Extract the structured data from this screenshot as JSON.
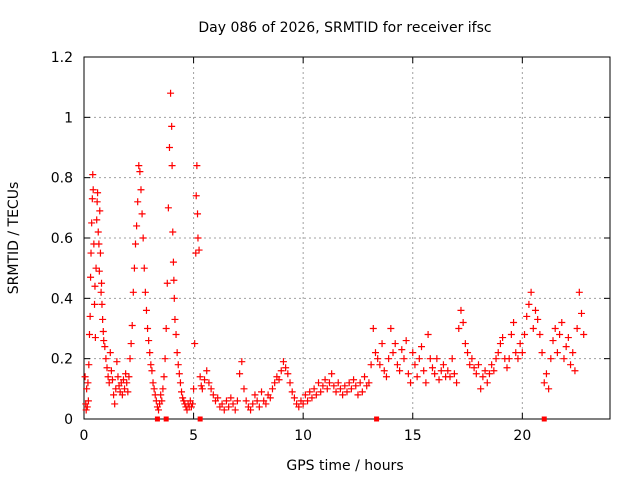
{
  "chart_data": {
    "type": "scatter",
    "title": "Day 086 of 2026, SRMTID for receiver ifsc",
    "xlabel": "GPS time / hours",
    "ylabel": "SRMTID / TECUs",
    "xlim": [
      0,
      24
    ],
    "ylim": [
      0,
      1.2
    ],
    "xticks": [
      0,
      5,
      10,
      15,
      20
    ],
    "xtick_labels": [
      "0",
      "5",
      "10",
      "15",
      "20"
    ],
    "yticks": [
      0,
      0.2,
      0.4,
      0.6,
      0.8,
      1.0,
      1.2
    ],
    "ytick_labels": [
      "0",
      "0.2",
      "0.4",
      "0.6",
      "0.8",
      "1",
      "1.2"
    ],
    "grid": true,
    "marker": "+",
    "series": [
      {
        "name": "SRMTID",
        "color": "#ff0000",
        "points": [
          [
            0.05,
            0.14
          ],
          [
            0.08,
            0.05
          ],
          [
            0.1,
            0.03
          ],
          [
            0.12,
            0.1
          ],
          [
            0.15,
            0.04
          ],
          [
            0.18,
            0.12
          ],
          [
            0.2,
            0.06
          ],
          [
            0.22,
            0.18
          ],
          [
            0.25,
            0.28
          ],
          [
            0.28,
            0.34
          ],
          [
            0.3,
            0.47
          ],
          [
            0.32,
            0.55
          ],
          [
            0.35,
            0.65
          ],
          [
            0.38,
            0.73
          ],
          [
            0.4,
            0.81
          ],
          [
            0.42,
            0.76
          ],
          [
            0.45,
            0.58
          ],
          [
            0.48,
            0.38
          ],
          [
            0.5,
            0.44
          ],
          [
            0.52,
            0.27
          ],
          [
            0.55,
            0.5
          ],
          [
            0.58,
            0.66
          ],
          [
            0.6,
            0.72
          ],
          [
            0.62,
            0.75
          ],
          [
            0.65,
            0.62
          ],
          [
            0.68,
            0.58
          ],
          [
            0.7,
            0.49
          ],
          [
            0.72,
            0.69
          ],
          [
            0.75,
            0.55
          ],
          [
            0.78,
            0.42
          ],
          [
            0.8,
            0.45
          ],
          [
            0.82,
            0.38
          ],
          [
            0.85,
            0.33
          ],
          [
            0.88,
            0.29
          ],
          [
            0.9,
            0.26
          ],
          [
            0.95,
            0.24
          ],
          [
            1.0,
            0.2
          ],
          [
            1.05,
            0.17
          ],
          [
            1.1,
            0.14
          ],
          [
            1.15,
            0.12
          ],
          [
            1.2,
            0.22
          ],
          [
            1.25,
            0.16
          ],
          [
            1.3,
            0.13
          ],
          [
            1.35,
            0.08
          ],
          [
            1.4,
            0.05
          ],
          [
            1.45,
            0.1
          ],
          [
            1.5,
            0.19
          ],
          [
            1.55,
            0.14
          ],
          [
            1.6,
            0.11
          ],
          [
            1.65,
            0.09
          ],
          [
            1.7,
            0.12
          ],
          [
            1.75,
            0.08
          ],
          [
            1.8,
            0.13
          ],
          [
            1.85,
            0.1
          ],
          [
            1.9,
            0.15
          ],
          [
            1.95,
            0.12
          ],
          [
            2.0,
            0.09
          ],
          [
            2.05,
            0.14
          ],
          [
            2.1,
            0.2
          ],
          [
            2.15,
            0.25
          ],
          [
            2.2,
            0.31
          ],
          [
            2.25,
            0.42
          ],
          [
            2.3,
            0.5
          ],
          [
            2.35,
            0.58
          ],
          [
            2.4,
            0.64
          ],
          [
            2.45,
            0.72
          ],
          [
            2.5,
            0.84
          ],
          [
            2.55,
            0.82
          ],
          [
            2.6,
            0.76
          ],
          [
            2.65,
            0.68
          ],
          [
            2.7,
            0.6
          ],
          [
            2.75,
            0.5
          ],
          [
            2.8,
            0.42
          ],
          [
            2.85,
            0.36
          ],
          [
            2.9,
            0.3
          ],
          [
            2.95,
            0.26
          ],
          [
            3.0,
            0.22
          ],
          [
            3.05,
            0.18
          ],
          [
            3.1,
            0.16
          ],
          [
            3.15,
            0.12
          ],
          [
            3.2,
            0.1
          ],
          [
            3.25,
            0.08
          ],
          [
            3.3,
            0.06
          ],
          [
            3.35,
            0.04
          ],
          [
            3.4,
            0.03
          ],
          [
            3.45,
            0.05
          ],
          [
            3.5,
            0.08
          ],
          [
            3.55,
            0.06
          ],
          [
            3.6,
            0.1
          ],
          [
            3.65,
            0.14
          ],
          [
            3.7,
            0.2
          ],
          [
            3.75,
            0.3
          ],
          [
            3.8,
            0.45
          ],
          [
            3.85,
            0.7
          ],
          [
            3.9,
            0.9
          ],
          [
            3.95,
            1.08
          ],
          [
            4.0,
            0.97
          ],
          [
            4.02,
            0.84
          ],
          [
            4.05,
            0.62
          ],
          [
            4.08,
            0.52
          ],
          [
            4.1,
            0.46
          ],
          [
            4.12,
            0.4
          ],
          [
            4.15,
            0.33
          ],
          [
            4.2,
            0.28
          ],
          [
            4.25,
            0.22
          ],
          [
            4.3,
            0.18
          ],
          [
            4.35,
            0.15
          ],
          [
            4.4,
            0.12
          ],
          [
            4.45,
            0.09
          ],
          [
            4.5,
            0.07
          ],
          [
            4.55,
            0.06
          ],
          [
            4.6,
            0.05
          ],
          [
            4.65,
            0.04
          ],
          [
            4.7,
            0.03
          ],
          [
            4.75,
            0.05
          ],
          [
            4.8,
            0.04
          ],
          [
            4.85,
            0.06
          ],
          [
            4.9,
            0.04
          ],
          [
            4.95,
            0.05
          ],
          [
            5.0,
            0.1
          ],
          [
            5.05,
            0.25
          ],
          [
            5.1,
            0.55
          ],
          [
            5.12,
            0.74
          ],
          [
            5.15,
            0.84
          ],
          [
            5.18,
            0.68
          ],
          [
            5.2,
            0.6
          ],
          [
            5.25,
            0.56
          ],
          [
            5.3,
            0.14
          ],
          [
            5.35,
            0.11
          ],
          [
            5.4,
            0.1
          ],
          [
            5.5,
            0.13
          ],
          [
            5.6,
            0.16
          ],
          [
            5.7,
            0.12
          ],
          [
            5.8,
            0.1
          ],
          [
            5.9,
            0.08
          ],
          [
            6.0,
            0.06
          ],
          [
            6.1,
            0.07
          ],
          [
            6.2,
            0.04
          ],
          [
            6.3,
            0.05
          ],
          [
            6.4,
            0.03
          ],
          [
            6.5,
            0.06
          ],
          [
            6.6,
            0.04
          ],
          [
            6.7,
            0.07
          ],
          [
            6.8,
            0.05
          ],
          [
            6.9,
            0.03
          ],
          [
            7.0,
            0.06
          ],
          [
            7.1,
            0.15
          ],
          [
            7.2,
            0.19
          ],
          [
            7.3,
            0.1
          ],
          [
            7.4,
            0.06
          ],
          [
            7.5,
            0.04
          ],
          [
            7.6,
            0.03
          ],
          [
            7.7,
            0.05
          ],
          [
            7.8,
            0.08
          ],
          [
            7.9,
            0.06
          ],
          [
            8.0,
            0.04
          ],
          [
            8.1,
            0.09
          ],
          [
            8.2,
            0.06
          ],
          [
            8.3,
            0.05
          ],
          [
            8.4,
            0.08
          ],
          [
            8.5,
            0.07
          ],
          [
            8.6,
            0.1
          ],
          [
            8.7,
            0.12
          ],
          [
            8.8,
            0.14
          ],
          [
            8.9,
            0.13
          ],
          [
            9.0,
            0.16
          ],
          [
            9.1,
            0.19
          ],
          [
            9.2,
            0.17
          ],
          [
            9.3,
            0.15
          ],
          [
            9.4,
            0.12
          ],
          [
            9.5,
            0.09
          ],
          [
            9.6,
            0.07
          ],
          [
            9.7,
            0.05
          ],
          [
            9.8,
            0.04
          ],
          [
            9.9,
            0.06
          ],
          [
            10.0,
            0.05
          ],
          [
            10.1,
            0.08
          ],
          [
            10.2,
            0.06
          ],
          [
            10.3,
            0.09
          ],
          [
            10.4,
            0.07
          ],
          [
            10.5,
            0.1
          ],
          [
            10.6,
            0.08
          ],
          [
            10.7,
            0.12
          ],
          [
            10.8,
            0.09
          ],
          [
            10.9,
            0.11
          ],
          [
            11.0,
            0.13
          ],
          [
            11.1,
            0.1
          ],
          [
            11.2,
            0.12
          ],
          [
            11.3,
            0.15
          ],
          [
            11.4,
            0.11
          ],
          [
            11.5,
            0.09
          ],
          [
            11.6,
            0.12
          ],
          [
            11.7,
            0.1
          ],
          [
            11.8,
            0.08
          ],
          [
            11.9,
            0.11
          ],
          [
            12.0,
            0.09
          ],
          [
            12.1,
            0.12
          ],
          [
            12.2,
            0.1
          ],
          [
            12.3,
            0.13
          ],
          [
            12.4,
            0.11
          ],
          [
            12.5,
            0.08
          ],
          [
            12.6,
            0.12
          ],
          [
            12.7,
            0.09
          ],
          [
            12.8,
            0.14
          ],
          [
            12.9,
            0.11
          ],
          [
            13.0,
            0.12
          ],
          [
            13.1,
            0.18
          ],
          [
            13.2,
            0.3
          ],
          [
            13.3,
            0.22
          ],
          [
            13.4,
            0.2
          ],
          [
            13.5,
            0.18
          ],
          [
            13.6,
            0.25
          ],
          [
            13.7,
            0.16
          ],
          [
            13.8,
            0.14
          ],
          [
            13.9,
            0.2
          ],
          [
            14.0,
            0.3
          ],
          [
            14.1,
            0.22
          ],
          [
            14.2,
            0.25
          ],
          [
            14.3,
            0.18
          ],
          [
            14.4,
            0.16
          ],
          [
            14.5,
            0.23
          ],
          [
            14.6,
            0.2
          ],
          [
            14.7,
            0.26
          ],
          [
            14.8,
            0.15
          ],
          [
            14.9,
            0.12
          ],
          [
            15.0,
            0.22
          ],
          [
            15.1,
            0.18
          ],
          [
            15.2,
            0.14
          ],
          [
            15.3,
            0.2
          ],
          [
            15.4,
            0.24
          ],
          [
            15.5,
            0.16
          ],
          [
            15.6,
            0.12
          ],
          [
            15.7,
            0.28
          ],
          [
            15.8,
            0.2
          ],
          [
            15.9,
            0.17
          ],
          [
            16.0,
            0.15
          ],
          [
            16.1,
            0.2
          ],
          [
            16.2,
            0.13
          ],
          [
            16.3,
            0.16
          ],
          [
            16.4,
            0.18
          ],
          [
            16.5,
            0.14
          ],
          [
            16.6,
            0.16
          ],
          [
            16.7,
            0.14
          ],
          [
            16.8,
            0.2
          ],
          [
            16.9,
            0.15
          ],
          [
            17.0,
            0.12
          ],
          [
            17.1,
            0.3
          ],
          [
            17.2,
            0.36
          ],
          [
            17.3,
            0.32
          ],
          [
            17.4,
            0.25
          ],
          [
            17.5,
            0.22
          ],
          [
            17.6,
            0.18
          ],
          [
            17.7,
            0.2
          ],
          [
            17.8,
            0.17
          ],
          [
            17.9,
            0.15
          ],
          [
            18.0,
            0.18
          ],
          [
            18.1,
            0.1
          ],
          [
            18.2,
            0.14
          ],
          [
            18.3,
            0.16
          ],
          [
            18.4,
            0.12
          ],
          [
            18.5,
            0.15
          ],
          [
            18.6,
            0.18
          ],
          [
            18.7,
            0.16
          ],
          [
            18.8,
            0.2
          ],
          [
            18.9,
            0.22
          ],
          [
            19.0,
            0.25
          ],
          [
            19.1,
            0.27
          ],
          [
            19.2,
            0.2
          ],
          [
            19.3,
            0.17
          ],
          [
            19.4,
            0.2
          ],
          [
            19.5,
            0.28
          ],
          [
            19.6,
            0.32
          ],
          [
            19.7,
            0.22
          ],
          [
            19.8,
            0.2
          ],
          [
            19.9,
            0.25
          ],
          [
            20.0,
            0.22
          ],
          [
            20.1,
            0.28
          ],
          [
            20.2,
            0.34
          ],
          [
            20.3,
            0.38
          ],
          [
            20.4,
            0.42
          ],
          [
            20.5,
            0.3
          ],
          [
            20.6,
            0.36
          ],
          [
            20.7,
            0.33
          ],
          [
            20.8,
            0.28
          ],
          [
            20.9,
            0.22
          ],
          [
            21.0,
            0.12
          ],
          [
            21.1,
            0.15
          ],
          [
            21.2,
            0.1
          ],
          [
            21.3,
            0.2
          ],
          [
            21.4,
            0.26
          ],
          [
            21.5,
            0.3
          ],
          [
            21.6,
            0.22
          ],
          [
            21.7,
            0.28
          ],
          [
            21.8,
            0.32
          ],
          [
            21.9,
            0.2
          ],
          [
            22.0,
            0.24
          ],
          [
            22.1,
            0.27
          ],
          [
            22.2,
            0.18
          ],
          [
            22.3,
            0.22
          ],
          [
            22.4,
            0.16
          ],
          [
            22.5,
            0.3
          ],
          [
            22.6,
            0.42
          ],
          [
            22.7,
            0.35
          ],
          [
            22.8,
            0.28
          ]
        ]
      },
      {
        "name": "SRMTID (zero-level markers)",
        "color": "#ff0000",
        "marker": "square",
        "points": [
          [
            3.35,
            0
          ],
          [
            3.75,
            0
          ],
          [
            5.3,
            0
          ],
          [
            13.35,
            0
          ],
          [
            21.0,
            0
          ]
        ]
      }
    ]
  }
}
